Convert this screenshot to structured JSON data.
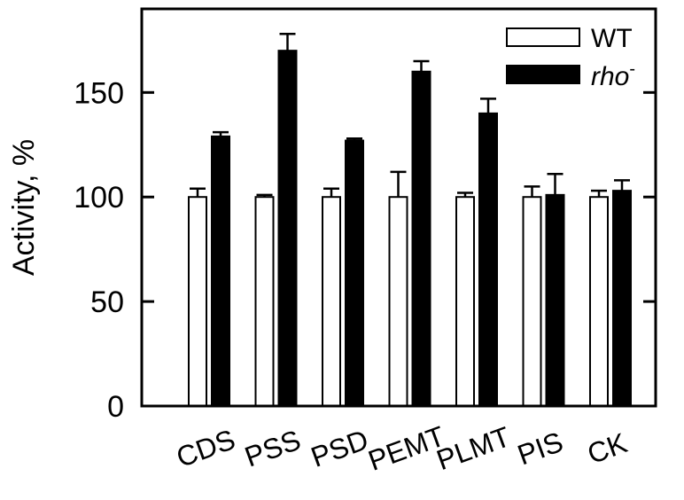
{
  "chart_data": {
    "type": "bar",
    "ylabel": "Activity, %",
    "xlabel": "",
    "ylim": [
      0,
      190
    ],
    "yticks": [
      0,
      50,
      100,
      150
    ],
    "grid": false,
    "legend_position": "top-right",
    "categories": [
      "CDS",
      "PSS",
      "PSD",
      "PEMT",
      "PLMT",
      "PIS",
      "CK"
    ],
    "series": [
      {
        "name": "WT",
        "fill": "#ffffff",
        "values": [
          100,
          100,
          100,
          100,
          100,
          100,
          100
        ],
        "errors": [
          4,
          1,
          4,
          12,
          2,
          5,
          3
        ]
      },
      {
        "name": "rho",
        "name_superscript": "-",
        "fill": "#000000",
        "values": [
          129,
          170,
          127,
          160,
          140,
          101,
          103
        ],
        "errors": [
          2,
          8,
          1,
          5,
          7,
          10,
          5
        ]
      }
    ]
  }
}
